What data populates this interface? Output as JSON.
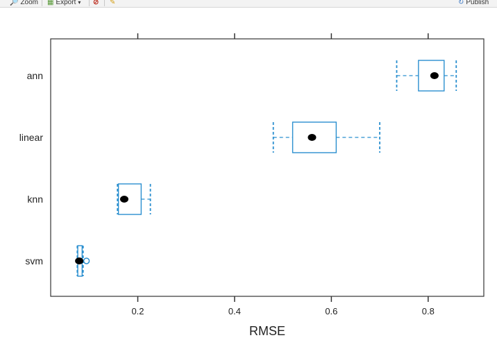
{
  "toolbar": {
    "zoom_label": "Zoom",
    "export_label": "Export",
    "export_caret": "▾",
    "publish_label": "Publish"
  },
  "colors": {
    "box": "#2a8fcf",
    "point": "#000000",
    "axis": "#333333"
  },
  "chart_data": {
    "type": "boxplot",
    "orientation": "horizontal",
    "xlabel": "RMSE",
    "ylabel": "",
    "xlim": [
      0.02,
      0.915
    ],
    "xticks": [
      0.2,
      0.4,
      0.6,
      0.8
    ],
    "xtick_labels": [
      "0.2",
      "0.4",
      "0.6",
      "0.8"
    ],
    "categories": [
      "ann",
      "linear",
      "knn",
      "svm"
    ],
    "series": [
      {
        "category": "ann",
        "min": 0.735,
        "q1": 0.78,
        "median": 0.813,
        "q3": 0.833,
        "max": 0.858,
        "outliers": []
      },
      {
        "category": "linear",
        "min": 0.48,
        "q1": 0.52,
        "median": 0.56,
        "q3": 0.61,
        "max": 0.7,
        "outliers": []
      },
      {
        "category": "knn",
        "min": 0.158,
        "q1": 0.16,
        "median": 0.172,
        "q3": 0.207,
        "max": 0.226,
        "outliers": []
      },
      {
        "category": "svm",
        "min": 0.075,
        "q1": 0.076,
        "median": 0.079,
        "q3": 0.085,
        "max": 0.087,
        "outliers": [
          0.094
        ]
      }
    ],
    "grid": false,
    "legend": "none"
  }
}
